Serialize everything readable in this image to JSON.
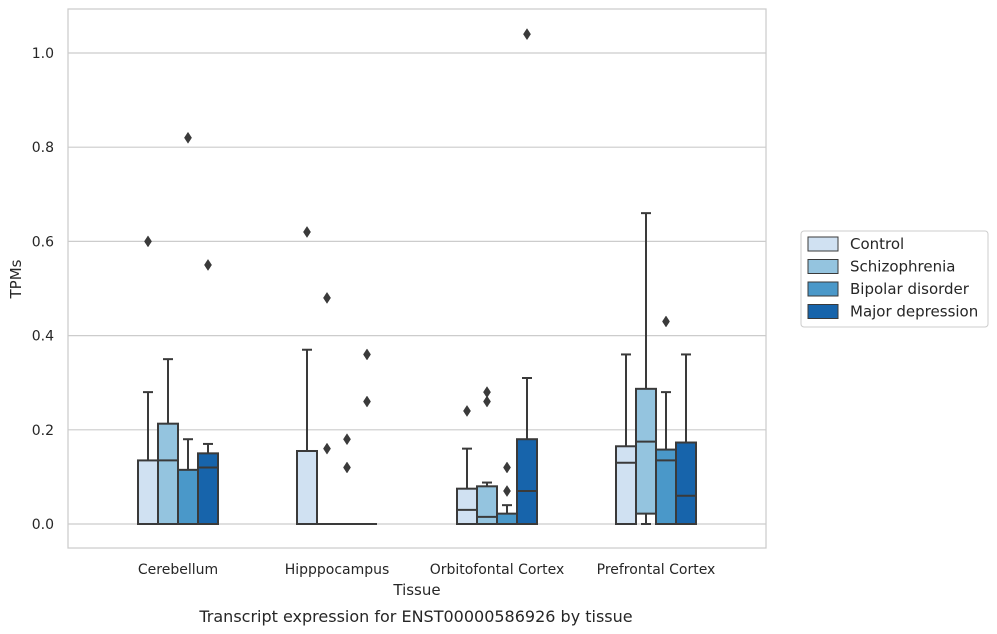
{
  "caption": "Transcript expression for ENST00000586926 by tissue",
  "colors": {
    "box_edge": "#3a3a3a",
    "grid": "#cccccc",
    "frame": "#cccccc",
    "background": "#ffffff"
  },
  "chart_data": {
    "type": "box",
    "title": "",
    "xlabel": "Tissue",
    "ylabel": "TPMs",
    "ylim": [
      -0.05,
      1.09
    ],
    "yticks": [
      0.0,
      0.2,
      0.4,
      0.6,
      0.8,
      1.0
    ],
    "ytick_labels": [
      "0.0",
      "0.2",
      "0.4",
      "0.6",
      "0.8",
      "1.0"
    ],
    "grid": "horizontal",
    "legend_position": "right",
    "categories": [
      "Cerebellum",
      "Hipppocampus",
      "Orbitofontal Cortex",
      "Prefrontal Cortex"
    ],
    "series": [
      {
        "name": "Control",
        "color": "#d0e1f2",
        "boxes": [
          {
            "whislo": 0.0,
            "q1": 0.0,
            "med": 0.0,
            "q3": 0.135,
            "whishi": 0.28,
            "fliers": [
              0.6
            ]
          },
          {
            "whislo": 0.0,
            "q1": 0.0,
            "med": 0.0,
            "q3": 0.155,
            "whishi": 0.37,
            "fliers": [
              0.62
            ]
          },
          {
            "whislo": 0.0,
            "q1": 0.0,
            "med": 0.03,
            "q3": 0.075,
            "whishi": 0.16,
            "fliers": [
              0.24
            ]
          },
          {
            "whislo": 0.0,
            "q1": 0.0,
            "med": 0.13,
            "q3": 0.165,
            "whishi": 0.36,
            "fliers": []
          }
        ]
      },
      {
        "name": "Schizophrenia",
        "color": "#94c4df",
        "boxes": [
          {
            "whislo": 0.0,
            "q1": 0.0,
            "med": 0.135,
            "q3": 0.213,
            "whishi": 0.35,
            "fliers": []
          },
          {
            "whislo": 0.0,
            "q1": 0.0,
            "med": 0.0,
            "q3": 0.0,
            "whishi": 0.0,
            "fliers": [
              0.48,
              0.16
            ]
          },
          {
            "whislo": 0.0,
            "q1": 0.0,
            "med": 0.015,
            "q3": 0.08,
            "whishi": 0.088,
            "fliers": [
              0.28,
              0.26
            ]
          },
          {
            "whislo": 0.0,
            "q1": 0.022,
            "med": 0.175,
            "q3": 0.287,
            "whishi": 0.66,
            "fliers": []
          }
        ]
      },
      {
        "name": "Bipolar disorder",
        "color": "#4a98c9",
        "boxes": [
          {
            "whislo": 0.0,
            "q1": 0.0,
            "med": 0.0,
            "q3": 0.115,
            "whishi": 0.18,
            "fliers": [
              0.82
            ]
          },
          {
            "whislo": 0.0,
            "q1": 0.0,
            "med": 0.0,
            "q3": 0.0,
            "whishi": 0.0,
            "fliers": [
              0.18,
              0.12
            ]
          },
          {
            "whislo": 0.0,
            "q1": 0.0,
            "med": 0.0,
            "q3": 0.022,
            "whishi": 0.04,
            "fliers": [
              0.12,
              0.07
            ]
          },
          {
            "whislo": 0.0,
            "q1": 0.0,
            "med": 0.135,
            "q3": 0.158,
            "whishi": 0.28,
            "fliers": [
              0.43
            ]
          }
        ]
      },
      {
        "name": "Major depression",
        "color": "#1764ab",
        "boxes": [
          {
            "whislo": 0.0,
            "q1": 0.0,
            "med": 0.12,
            "q3": 0.15,
            "whishi": 0.17,
            "fliers": [
              0.55
            ]
          },
          {
            "whislo": 0.0,
            "q1": 0.0,
            "med": 0.0,
            "q3": 0.0,
            "whishi": 0.0,
            "fliers": [
              0.36,
              0.26
            ]
          },
          {
            "whislo": 0.0,
            "q1": 0.0,
            "med": 0.07,
            "q3": 0.18,
            "whishi": 0.31,
            "fliers": [
              1.04
            ]
          },
          {
            "whislo": 0.0,
            "q1": 0.0,
            "med": 0.06,
            "q3": 0.173,
            "whishi": 0.36,
            "fliers": []
          }
        ]
      }
    ]
  }
}
